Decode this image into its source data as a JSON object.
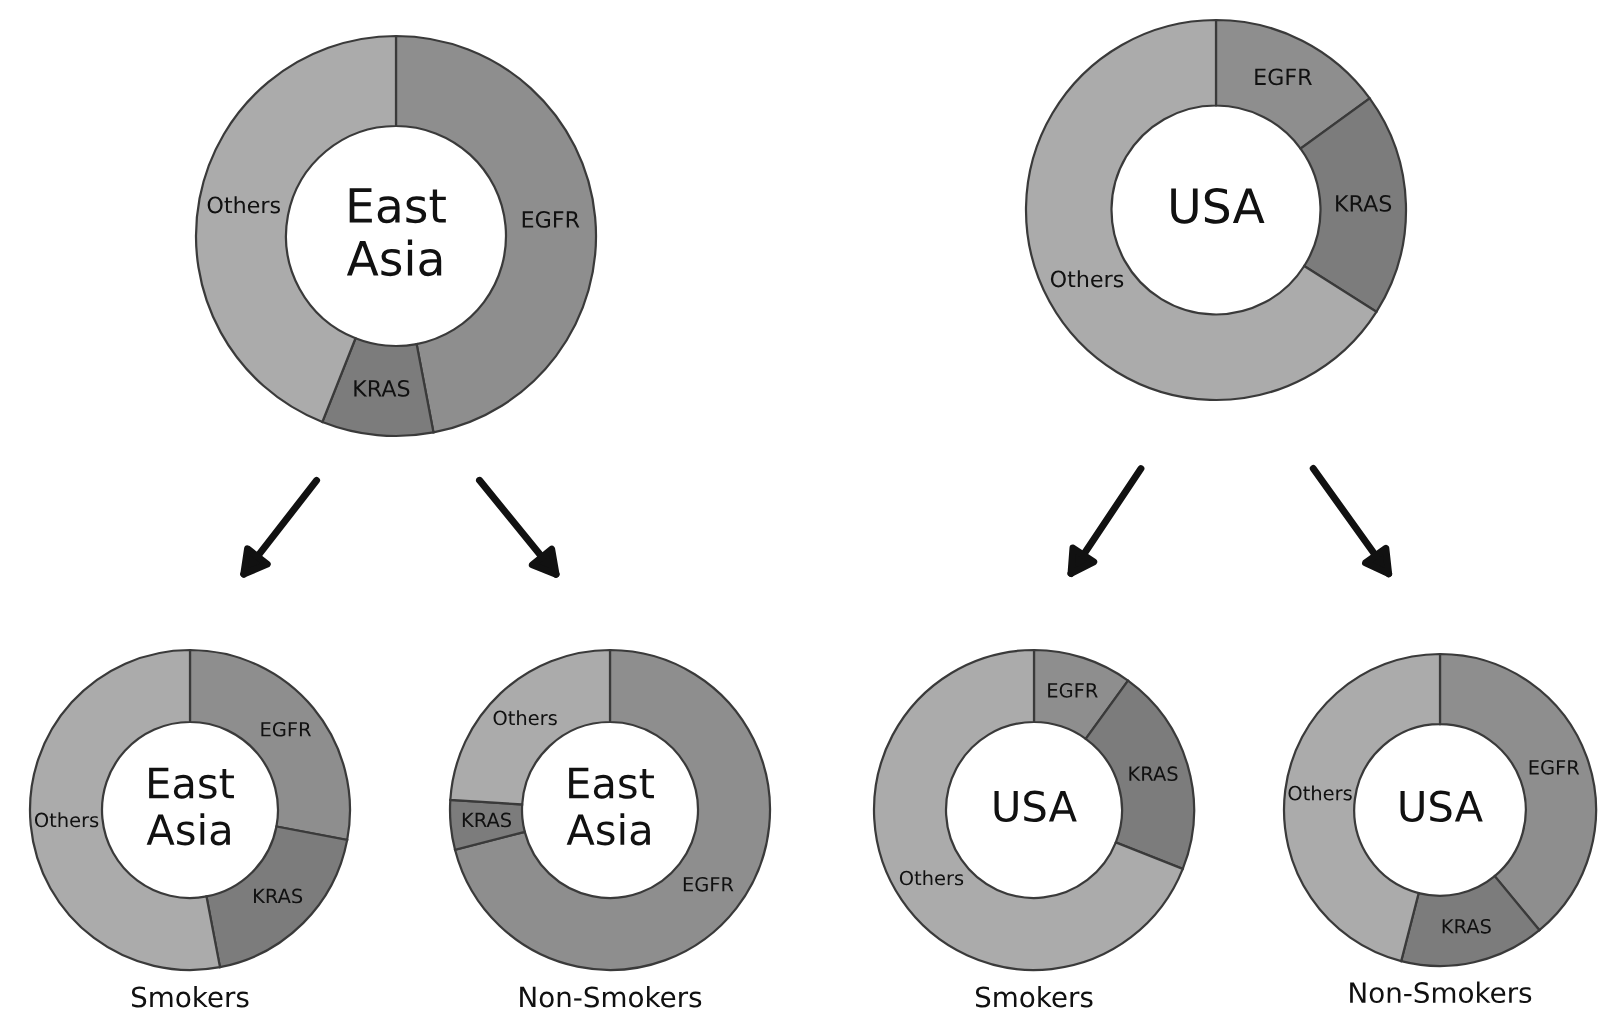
{
  "chart_data": [
    {
      "type": "donut",
      "title": "East Asia",
      "categories": [
        "EGFR",
        "KRAS",
        "Others"
      ],
      "values": [
        47,
        9,
        44
      ],
      "colors": [
        "#8e8e8e",
        "#7c7c7c",
        "#ababab"
      ]
    },
    {
      "type": "donut",
      "title": "USA",
      "categories": [
        "EGFR",
        "KRAS",
        "Others"
      ],
      "values": [
        15,
        19,
        66
      ],
      "colors": [
        "#8e8e8e",
        "#7c7c7c",
        "#ababab"
      ]
    },
    {
      "type": "donut",
      "title": "East Asia",
      "xlabel": "Smokers",
      "categories": [
        "EGFR",
        "KRAS",
        "Others"
      ],
      "values": [
        28,
        19,
        53
      ],
      "colors": [
        "#8e8e8e",
        "#7c7c7c",
        "#ababab"
      ]
    },
    {
      "type": "donut",
      "title": "East Asia",
      "xlabel": "Non-Smokers",
      "categories": [
        "EGFR",
        "KRAS",
        "Others"
      ],
      "values": [
        71,
        5,
        24
      ],
      "colors": [
        "#8e8e8e",
        "#7c7c7c",
        "#ababab"
      ]
    },
    {
      "type": "donut",
      "title": "USA",
      "xlabel": "Smokers",
      "categories": [
        "EGFR",
        "KRAS",
        "Others"
      ],
      "values": [
        10,
        21,
        69
      ],
      "colors": [
        "#8e8e8e",
        "#7c7c7c",
        "#ababab"
      ]
    },
    {
      "type": "donut",
      "title": "USA",
      "xlabel": "Non-Smokers",
      "categories": [
        "EGFR",
        "KRAS",
        "Others"
      ],
      "values": [
        39,
        15,
        46
      ],
      "colors": [
        "#8e8e8e",
        "#7c7c7c",
        "#ababab"
      ]
    }
  ]
}
